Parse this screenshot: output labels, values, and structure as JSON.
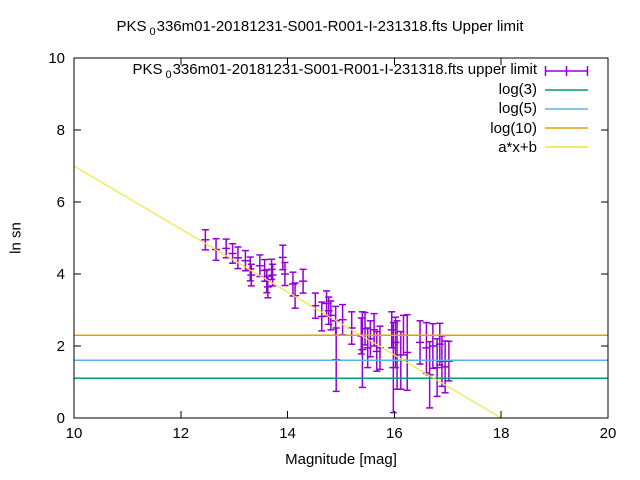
{
  "chart_data": {
    "type": "scatter",
    "title_parts": [
      [
        "PKS",
        false
      ],
      [
        "0",
        true
      ],
      [
        "336m01-20181231-S001-R001-I-231318.fts Upper limit",
        false
      ]
    ],
    "xlabel": "Magnitude [mag]",
    "ylabel": "ln sn",
    "xlim": [
      10,
      20
    ],
    "ylim": [
      0,
      10
    ],
    "x_ticks": [
      10,
      12,
      14,
      16,
      18,
      20
    ],
    "y_ticks": [
      0,
      2,
      4,
      6,
      8,
      10
    ],
    "grid": false,
    "legend_position": "top right inside",
    "background_color": "#ffffff",
    "axis_color": "#000000",
    "series": [
      {
        "name": "PKS 0336m01-20181231-S001-R001-I-231318.fts upper limit",
        "label_parts": [
          [
            "PKS",
            false
          ],
          [
            "0",
            true
          ],
          [
            "336m01-20181231-S001-R001-I-231318.fts upper limit",
            false
          ]
        ],
        "type": "errorbars",
        "color": "#9400d3",
        "points": [
          [
            12.46,
            4.95,
            0.28
          ],
          [
            12.66,
            4.68,
            0.3
          ],
          [
            12.85,
            4.71,
            0.26
          ],
          [
            12.97,
            4.57,
            0.27
          ],
          [
            13.07,
            4.45,
            0.3
          ],
          [
            13.21,
            4.37,
            0.28
          ],
          [
            13.3,
            4.14,
            0.33
          ],
          [
            13.32,
            3.97,
            0.3
          ],
          [
            13.48,
            4.23,
            0.3
          ],
          [
            13.57,
            4.1,
            0.3
          ],
          [
            13.61,
            3.8,
            0.32
          ],
          [
            13.63,
            3.64,
            0.3
          ],
          [
            13.7,
            4.13,
            0.28
          ],
          [
            13.72,
            3.97,
            0.3
          ],
          [
            13.91,
            4.46,
            0.34
          ],
          [
            13.95,
            4.0,
            0.32
          ],
          [
            14.1,
            3.72,
            0.33
          ],
          [
            14.14,
            3.4,
            0.35
          ],
          [
            14.29,
            3.8,
            0.33
          ],
          [
            14.52,
            3.12,
            0.35
          ],
          [
            14.64,
            2.82,
            0.4
          ],
          [
            14.73,
            3.18,
            0.35
          ],
          [
            14.77,
            2.98,
            0.38
          ],
          [
            14.81,
            2.85,
            0.4
          ],
          [
            14.9,
            2.7,
            0.4
          ],
          [
            14.91,
            1.62,
            0.88
          ],
          [
            15.03,
            2.73,
            0.42
          ],
          [
            15.2,
            2.5,
            0.45
          ],
          [
            15.38,
            2.28,
            0.5
          ],
          [
            15.4,
            1.9,
            1.05
          ],
          [
            15.45,
            2.48,
            0.45
          ],
          [
            15.5,
            1.95,
            0.55
          ],
          [
            15.55,
            2.2,
            0.5
          ],
          [
            15.62,
            2.45,
            0.45
          ],
          [
            15.67,
            1.85,
            0.55
          ],
          [
            15.73,
            1.95,
            0.6
          ],
          [
            15.95,
            2.45,
            0.5
          ],
          [
            15.98,
            1.4,
            1.25
          ],
          [
            16.02,
            2.1,
            0.7
          ],
          [
            16.05,
            1.75,
            0.95
          ],
          [
            16.12,
            1.6,
            0.8
          ],
          [
            16.17,
            2.3,
            0.55
          ],
          [
            16.24,
            1.82,
            1.05
          ],
          [
            16.48,
            2.1,
            0.6
          ],
          [
            16.6,
            1.95,
            0.7
          ],
          [
            16.66,
            1.2,
            0.92
          ],
          [
            16.72,
            2.0,
            0.62
          ],
          [
            16.8,
            1.4,
            0.8
          ],
          [
            16.85,
            2.05,
            0.58
          ],
          [
            16.89,
            1.58,
            0.7
          ],
          [
            16.95,
            1.42,
            0.72
          ],
          [
            17.02,
            1.58,
            0.55
          ]
        ]
      },
      {
        "name": "log(3)",
        "label_parts": [
          [
            "log(3)",
            false
          ]
        ],
        "type": "hline",
        "color": "#009e73",
        "y": 1.0986
      },
      {
        "name": "log(5)",
        "label_parts": [
          [
            "log(5)",
            false
          ]
        ],
        "type": "hline",
        "color": "#56b4e9",
        "y": 1.6094
      },
      {
        "name": "log(10)",
        "label_parts": [
          [
            "log(10)",
            false
          ]
        ],
        "type": "hline",
        "color": "#e69f00",
        "y": 2.3026
      },
      {
        "name": "a*x+b",
        "label_parts": [
          [
            "a*x+b",
            false
          ]
        ],
        "type": "line",
        "color": "#f0e442",
        "x": [
          10,
          18
        ],
        "y": [
          7.0,
          0.0
        ]
      }
    ]
  }
}
